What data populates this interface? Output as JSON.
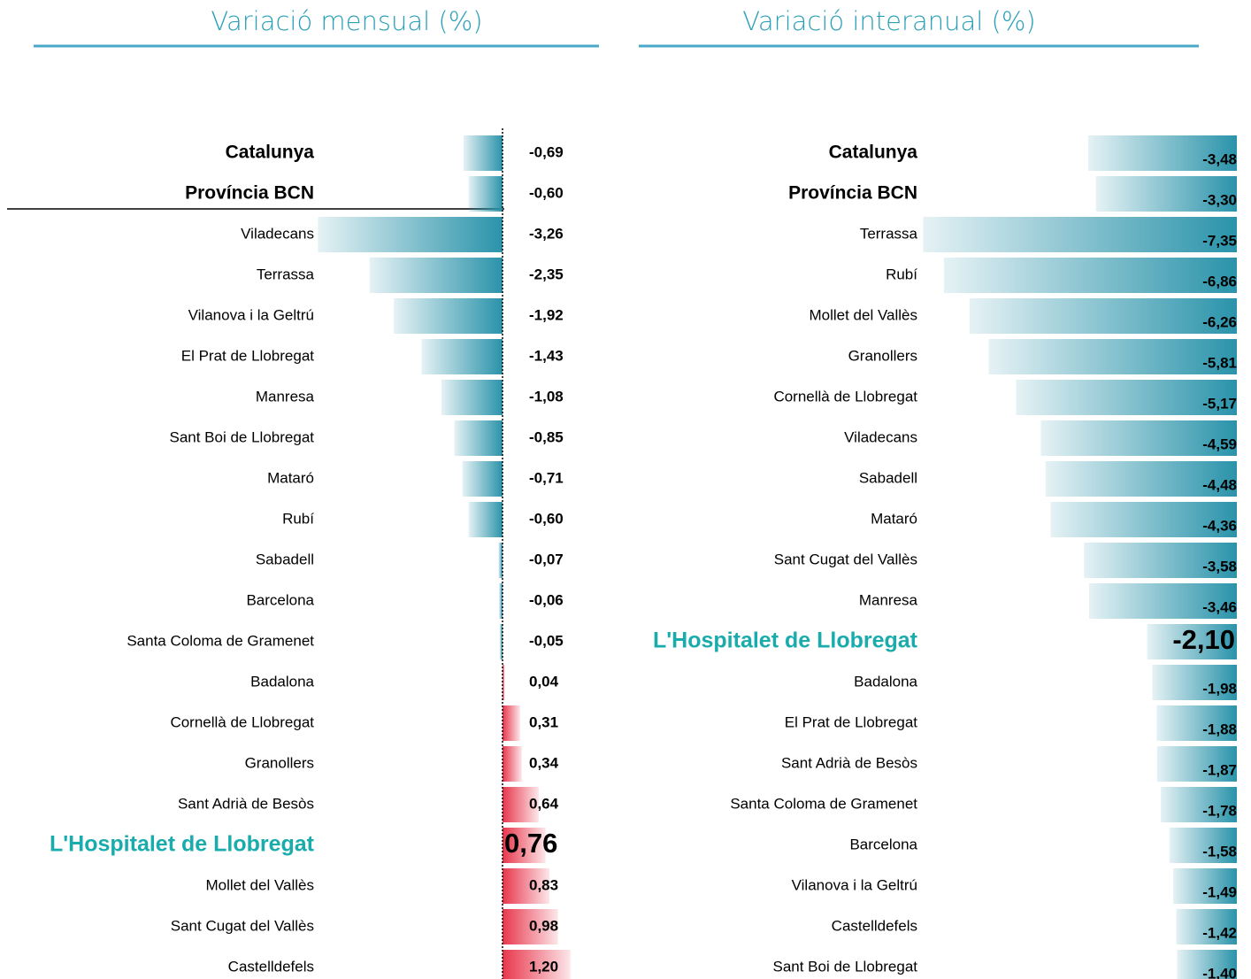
{
  "chart_data": [
    {
      "type": "bar",
      "title": "Variació mensual (%)",
      "categories": [
        "Catalunya",
        "Província BCN",
        "Viladecans",
        "Terrassa",
        "Vilanova i la Geltrú",
        "El Prat de Llobregat",
        "Manresa",
        "Sant Boi de Llobregat",
        "Mataró",
        "Rubí",
        "Sabadell",
        "Barcelona",
        "Santa Coloma de Gramenet",
        "Badalona",
        "Cornellà de Llobregat",
        "Granollers",
        "Sant Adrià de Besòs",
        "L'Hospitalet de Llobregat",
        "Mollet del Vallès",
        "Sant Cugat del Vallès",
        "Castelldefels"
      ],
      "values": [
        -0.69,
        -0.6,
        -3.26,
        -2.35,
        -1.92,
        -1.43,
        -1.08,
        -0.85,
        -0.71,
        -0.6,
        -0.07,
        -0.06,
        -0.05,
        0.04,
        0.31,
        0.34,
        0.64,
        0.76,
        0.83,
        0.98,
        1.2
      ],
      "value_labels": [
        "-0,69",
        "-0,60",
        "-3,26",
        "-2,35",
        "-1,92",
        "-1,43",
        "-1,08",
        "-0,85",
        "-0,71",
        "-0,60",
        "-0,07",
        "-0,06",
        "-0,05",
        "0,04",
        "0,31",
        "0,34",
        "0,64",
        "0,76",
        "0,83",
        "0,98",
        "1,20"
      ],
      "xlim": [
        -4,
        1.5
      ],
      "negative_color": "#2a93aa",
      "positive_color": "#e8364c",
      "emphasis": [
        0,
        1
      ],
      "highlight_index": 17,
      "highlight_color": "#1aacac"
    },
    {
      "type": "bar",
      "title": "Variació interanual (%)",
      "categories": [
        "Catalunya",
        "Província BCN",
        "Terrassa",
        "Rubí",
        "Mollet del Vallès",
        "Granollers",
        "Cornellà de Llobregat",
        "Viladecans",
        "Sabadell",
        "Mataró",
        "Sant Cugat del Vallès",
        "Manresa",
        "L'Hospitalet de Llobregat",
        "Badalona",
        "El Prat de Llobregat",
        "Sant Adrià de Besòs",
        "Santa Coloma de Gramenet",
        "Barcelona",
        "Vilanova i la Geltrú",
        "Castelldefels",
        "Sant Boi de Llobregat"
      ],
      "values": [
        -3.48,
        -3.3,
        -7.35,
        -6.86,
        -6.26,
        -5.81,
        -5.17,
        -4.59,
        -4.48,
        -4.36,
        -3.58,
        -3.46,
        -2.1,
        -1.98,
        -1.88,
        -1.87,
        -1.78,
        -1.58,
        -1.49,
        -1.42,
        -1.4
      ],
      "value_labels": [
        "-3,48",
        "-3,30",
        "-7,35",
        "-6,86",
        "-6,26",
        "-5,81",
        "-5,17",
        "-4,59",
        "-4,48",
        "-4,36",
        "-3,58",
        "-3,46",
        "-2,10",
        "-1,98",
        "-1,88",
        "-1,87",
        "-1,78",
        "-1,58",
        "-1,49",
        "-1,42",
        "-1,40"
      ],
      "xlim": [
        -7.5,
        0
      ],
      "negative_color": "#2a93aa",
      "positive_color": "#e8364c",
      "emphasis": [
        0,
        1
      ],
      "highlight_index": 12,
      "highlight_color": "#1aacac"
    }
  ]
}
